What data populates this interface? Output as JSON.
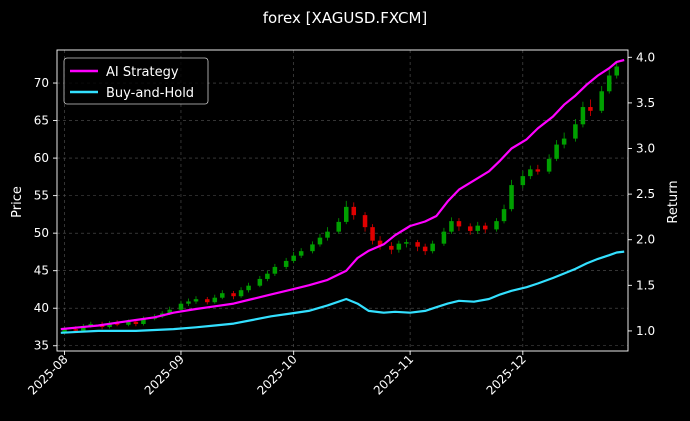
{
  "chart_data": {
    "type": "line",
    "title": "forex [XAGUSD.FXCM]",
    "xlabel": "",
    "ylabel_left": "Price",
    "ylabel_right": "Return",
    "x_ticks": [
      "2025-08",
      "2025-09",
      "2025-10",
      "2025-11",
      "2025-12"
    ],
    "x_tick_dates": [
      "2025-08-01",
      "2025-09-01",
      "2025-10-01",
      "2025-11-01",
      "2025-12-01"
    ],
    "x_range": [
      "2025-07-30",
      "2025-12-29"
    ],
    "y_left_ticks": [
      35,
      40,
      45,
      50,
      55,
      60,
      65,
      70
    ],
    "y_left_range": [
      34.3,
      74.4
    ],
    "y_right_ticks": [
      "1.0",
      "1.5",
      "2.0",
      "2.5",
      "3.0",
      "3.5",
      "4.0"
    ],
    "y_right_range": [
      0.78,
      4.08
    ],
    "grid": true,
    "legend_placement": "top-left",
    "colors": {
      "background": "#000000",
      "ai_strategy": "#ff00ff",
      "buy_and_hold": "#33e0ff",
      "candle_up": "#00a000",
      "candle_down": "#e00000",
      "grid": "#555555"
    },
    "series": [
      {
        "name": "AI Strategy",
        "axis": "right",
        "points": [
          [
            "2025-07-31",
            1.02
          ],
          [
            "2025-08-05",
            1.04
          ],
          [
            "2025-08-10",
            1.06
          ],
          [
            "2025-08-15",
            1.09
          ],
          [
            "2025-08-20",
            1.12
          ],
          [
            "2025-08-25",
            1.15
          ],
          [
            "2025-08-30",
            1.2
          ],
          [
            "2025-09-05",
            1.24
          ],
          [
            "2025-09-10",
            1.27
          ],
          [
            "2025-09-15",
            1.3
          ],
          [
            "2025-09-20",
            1.35
          ],
          [
            "2025-09-25",
            1.4
          ],
          [
            "2025-09-30",
            1.45
          ],
          [
            "2025-10-05",
            1.5
          ],
          [
            "2025-10-10",
            1.56
          ],
          [
            "2025-10-15",
            1.66
          ],
          [
            "2025-10-18",
            1.8
          ],
          [
            "2025-10-21",
            1.88
          ],
          [
            "2025-10-25",
            1.95
          ],
          [
            "2025-10-28",
            2.05
          ],
          [
            "2025-11-01",
            2.15
          ],
          [
            "2025-11-05",
            2.2
          ],
          [
            "2025-11-08",
            2.26
          ],
          [
            "2025-11-11",
            2.42
          ],
          [
            "2025-11-14",
            2.55
          ],
          [
            "2025-11-18",
            2.65
          ],
          [
            "2025-11-22",
            2.75
          ],
          [
            "2025-11-25",
            2.87
          ],
          [
            "2025-11-28",
            3.0
          ],
          [
            "2025-12-02",
            3.1
          ],
          [
            "2025-12-05",
            3.22
          ],
          [
            "2025-12-09",
            3.35
          ],
          [
            "2025-12-12",
            3.48
          ],
          [
            "2025-12-15",
            3.58
          ],
          [
            "2025-12-18",
            3.7
          ],
          [
            "2025-12-21",
            3.8
          ],
          [
            "2025-12-24",
            3.88
          ],
          [
            "2025-12-26",
            3.95
          ],
          [
            "2025-12-28",
            3.97
          ]
        ]
      },
      {
        "name": "Buy-and-Hold",
        "axis": "right",
        "points": [
          [
            "2025-07-31",
            0.98
          ],
          [
            "2025-08-05",
            0.99
          ],
          [
            "2025-08-10",
            1.0
          ],
          [
            "2025-08-15",
            1.0
          ],
          [
            "2025-08-20",
            1.0
          ],
          [
            "2025-08-25",
            1.01
          ],
          [
            "2025-08-30",
            1.02
          ],
          [
            "2025-09-05",
            1.04
          ],
          [
            "2025-09-10",
            1.06
          ],
          [
            "2025-09-15",
            1.08
          ],
          [
            "2025-09-20",
            1.12
          ],
          [
            "2025-09-25",
            1.16
          ],
          [
            "2025-09-30",
            1.19
          ],
          [
            "2025-10-05",
            1.22
          ],
          [
            "2025-10-10",
            1.28
          ],
          [
            "2025-10-15",
            1.35
          ],
          [
            "2025-10-18",
            1.3
          ],
          [
            "2025-10-21",
            1.22
          ],
          [
            "2025-10-25",
            1.2
          ],
          [
            "2025-10-28",
            1.21
          ],
          [
            "2025-11-01",
            1.2
          ],
          [
            "2025-11-05",
            1.22
          ],
          [
            "2025-11-08",
            1.26
          ],
          [
            "2025-11-11",
            1.3
          ],
          [
            "2025-11-14",
            1.33
          ],
          [
            "2025-11-18",
            1.32
          ],
          [
            "2025-11-22",
            1.35
          ],
          [
            "2025-11-25",
            1.4
          ],
          [
            "2025-11-28",
            1.44
          ],
          [
            "2025-12-02",
            1.48
          ],
          [
            "2025-12-05",
            1.52
          ],
          [
            "2025-12-09",
            1.58
          ],
          [
            "2025-12-12",
            1.63
          ],
          [
            "2025-12-15",
            1.68
          ],
          [
            "2025-12-18",
            1.74
          ],
          [
            "2025-12-21",
            1.79
          ],
          [
            "2025-12-24",
            1.83
          ],
          [
            "2025-12-26",
            1.86
          ],
          [
            "2025-12-28",
            1.87
          ]
        ]
      }
    ],
    "candles": [
      [
        "2025-08-01",
        36.8,
        37.2,
        37.5,
        36.6
      ],
      [
        "2025-08-04",
        37.2,
        37.0,
        37.6,
        36.8
      ],
      [
        "2025-08-06",
        37.0,
        37.6,
        37.9,
        36.9
      ],
      [
        "2025-08-08",
        37.6,
        37.9,
        38.2,
        37.4
      ],
      [
        "2025-08-11",
        37.9,
        37.5,
        38.2,
        37.2
      ],
      [
        "2025-08-13",
        37.5,
        38.0,
        38.3,
        37.3
      ],
      [
        "2025-08-15",
        38.0,
        37.8,
        38.4,
        37.6
      ],
      [
        "2025-08-18",
        37.8,
        38.2,
        38.5,
        37.6
      ],
      [
        "2025-08-20",
        38.2,
        37.9,
        38.4,
        37.6
      ],
      [
        "2025-08-22",
        37.9,
        38.6,
        38.9,
        37.7
      ],
      [
        "2025-08-25",
        38.6,
        38.9,
        39.2,
        38.4
      ],
      [
        "2025-08-27",
        38.9,
        39.3,
        39.6,
        38.7
      ],
      [
        "2025-08-29",
        39.3,
        39.8,
        40.2,
        39.1
      ],
      [
        "2025-09-01",
        39.8,
        40.6,
        41.0,
        39.6
      ],
      [
        "2025-09-03",
        40.6,
        40.9,
        41.3,
        40.3
      ],
      [
        "2025-09-05",
        40.9,
        41.2,
        41.6,
        40.6
      ],
      [
        "2025-09-08",
        41.2,
        40.8,
        41.5,
        40.5
      ],
      [
        "2025-09-10",
        40.8,
        41.4,
        41.8,
        40.6
      ],
      [
        "2025-09-12",
        41.4,
        42.0,
        42.4,
        41.2
      ],
      [
        "2025-09-15",
        42.0,
        41.6,
        42.3,
        41.2
      ],
      [
        "2025-09-17",
        41.6,
        42.4,
        42.8,
        41.4
      ],
      [
        "2025-09-19",
        42.4,
        43.0,
        43.4,
        42.1
      ],
      [
        "2025-09-22",
        43.0,
        43.9,
        44.3,
        42.8
      ],
      [
        "2025-09-24",
        43.9,
        44.6,
        45.0,
        43.6
      ],
      [
        "2025-09-26",
        44.6,
        45.5,
        45.9,
        44.3
      ],
      [
        "2025-09-29",
        45.5,
        46.3,
        46.7,
        45.2
      ],
      [
        "2025-10-01",
        46.3,
        47.0,
        47.5,
        46.0
      ],
      [
        "2025-10-03",
        47.0,
        47.6,
        48.0,
        46.7
      ],
      [
        "2025-10-06",
        47.6,
        48.5,
        48.9,
        47.3
      ],
      [
        "2025-10-08",
        48.5,
        49.4,
        49.9,
        48.2
      ],
      [
        "2025-10-10",
        49.4,
        50.2,
        50.8,
        49.0
      ],
      [
        "2025-10-13",
        50.2,
        51.5,
        52.0,
        49.9
      ],
      [
        "2025-10-15",
        51.5,
        53.5,
        54.3,
        51.2
      ],
      [
        "2025-10-17",
        53.5,
        52.4,
        54.1,
        51.8
      ],
      [
        "2025-10-20",
        52.4,
        50.8,
        52.8,
        50.2
      ],
      [
        "2025-10-22",
        50.8,
        49.0,
        51.2,
        48.5
      ],
      [
        "2025-10-24",
        49.0,
        48.3,
        49.6,
        47.8
      ],
      [
        "2025-10-27",
        48.3,
        47.8,
        48.8,
        47.2
      ],
      [
        "2025-10-29",
        47.8,
        48.6,
        49.0,
        47.4
      ],
      [
        "2025-10-31",
        48.6,
        48.8,
        49.2,
        48.1
      ],
      [
        "2025-11-03",
        48.8,
        48.2,
        49.1,
        47.6
      ],
      [
        "2025-11-05",
        48.2,
        47.6,
        48.6,
        47.1
      ],
      [
        "2025-11-07",
        47.6,
        48.6,
        49.0,
        47.3
      ],
      [
        "2025-11-10",
        48.6,
        50.2,
        50.7,
        48.3
      ],
      [
        "2025-11-12",
        50.2,
        51.6,
        52.1,
        49.9
      ],
      [
        "2025-11-14",
        51.6,
        50.9,
        52.0,
        50.3
      ],
      [
        "2025-11-17",
        50.9,
        50.3,
        51.3,
        49.8
      ],
      [
        "2025-11-19",
        50.3,
        51.0,
        51.5,
        49.9
      ],
      [
        "2025-11-21",
        51.0,
        50.5,
        51.4,
        50.0
      ],
      [
        "2025-11-24",
        50.5,
        51.6,
        52.0,
        50.2
      ],
      [
        "2025-11-26",
        51.6,
        53.2,
        53.8,
        51.3
      ],
      [
        "2025-11-28",
        53.2,
        56.4,
        57.1,
        52.9
      ],
      [
        "2025-12-01",
        56.4,
        57.6,
        58.3,
        56.0
      ],
      [
        "2025-12-03",
        57.6,
        58.5,
        59.0,
        57.2
      ],
      [
        "2025-12-05",
        58.5,
        58.2,
        59.1,
        57.8
      ],
      [
        "2025-12-08",
        58.2,
        59.9,
        60.5,
        57.9
      ],
      [
        "2025-12-10",
        59.9,
        61.8,
        62.4,
        59.6
      ],
      [
        "2025-12-12",
        61.8,
        62.6,
        63.4,
        61.3
      ],
      [
        "2025-12-15",
        62.6,
        64.5,
        65.2,
        62.2
      ],
      [
        "2025-12-17",
        64.5,
        66.8,
        67.5,
        64.1
      ],
      [
        "2025-12-19",
        66.8,
        66.3,
        67.8,
        65.6
      ],
      [
        "2025-12-22",
        66.3,
        68.9,
        69.6,
        66.0
      ],
      [
        "2025-12-24",
        68.9,
        71.0,
        71.8,
        68.6
      ],
      [
        "2025-12-26",
        71.0,
        72.2,
        72.9,
        70.6
      ]
    ]
  }
}
